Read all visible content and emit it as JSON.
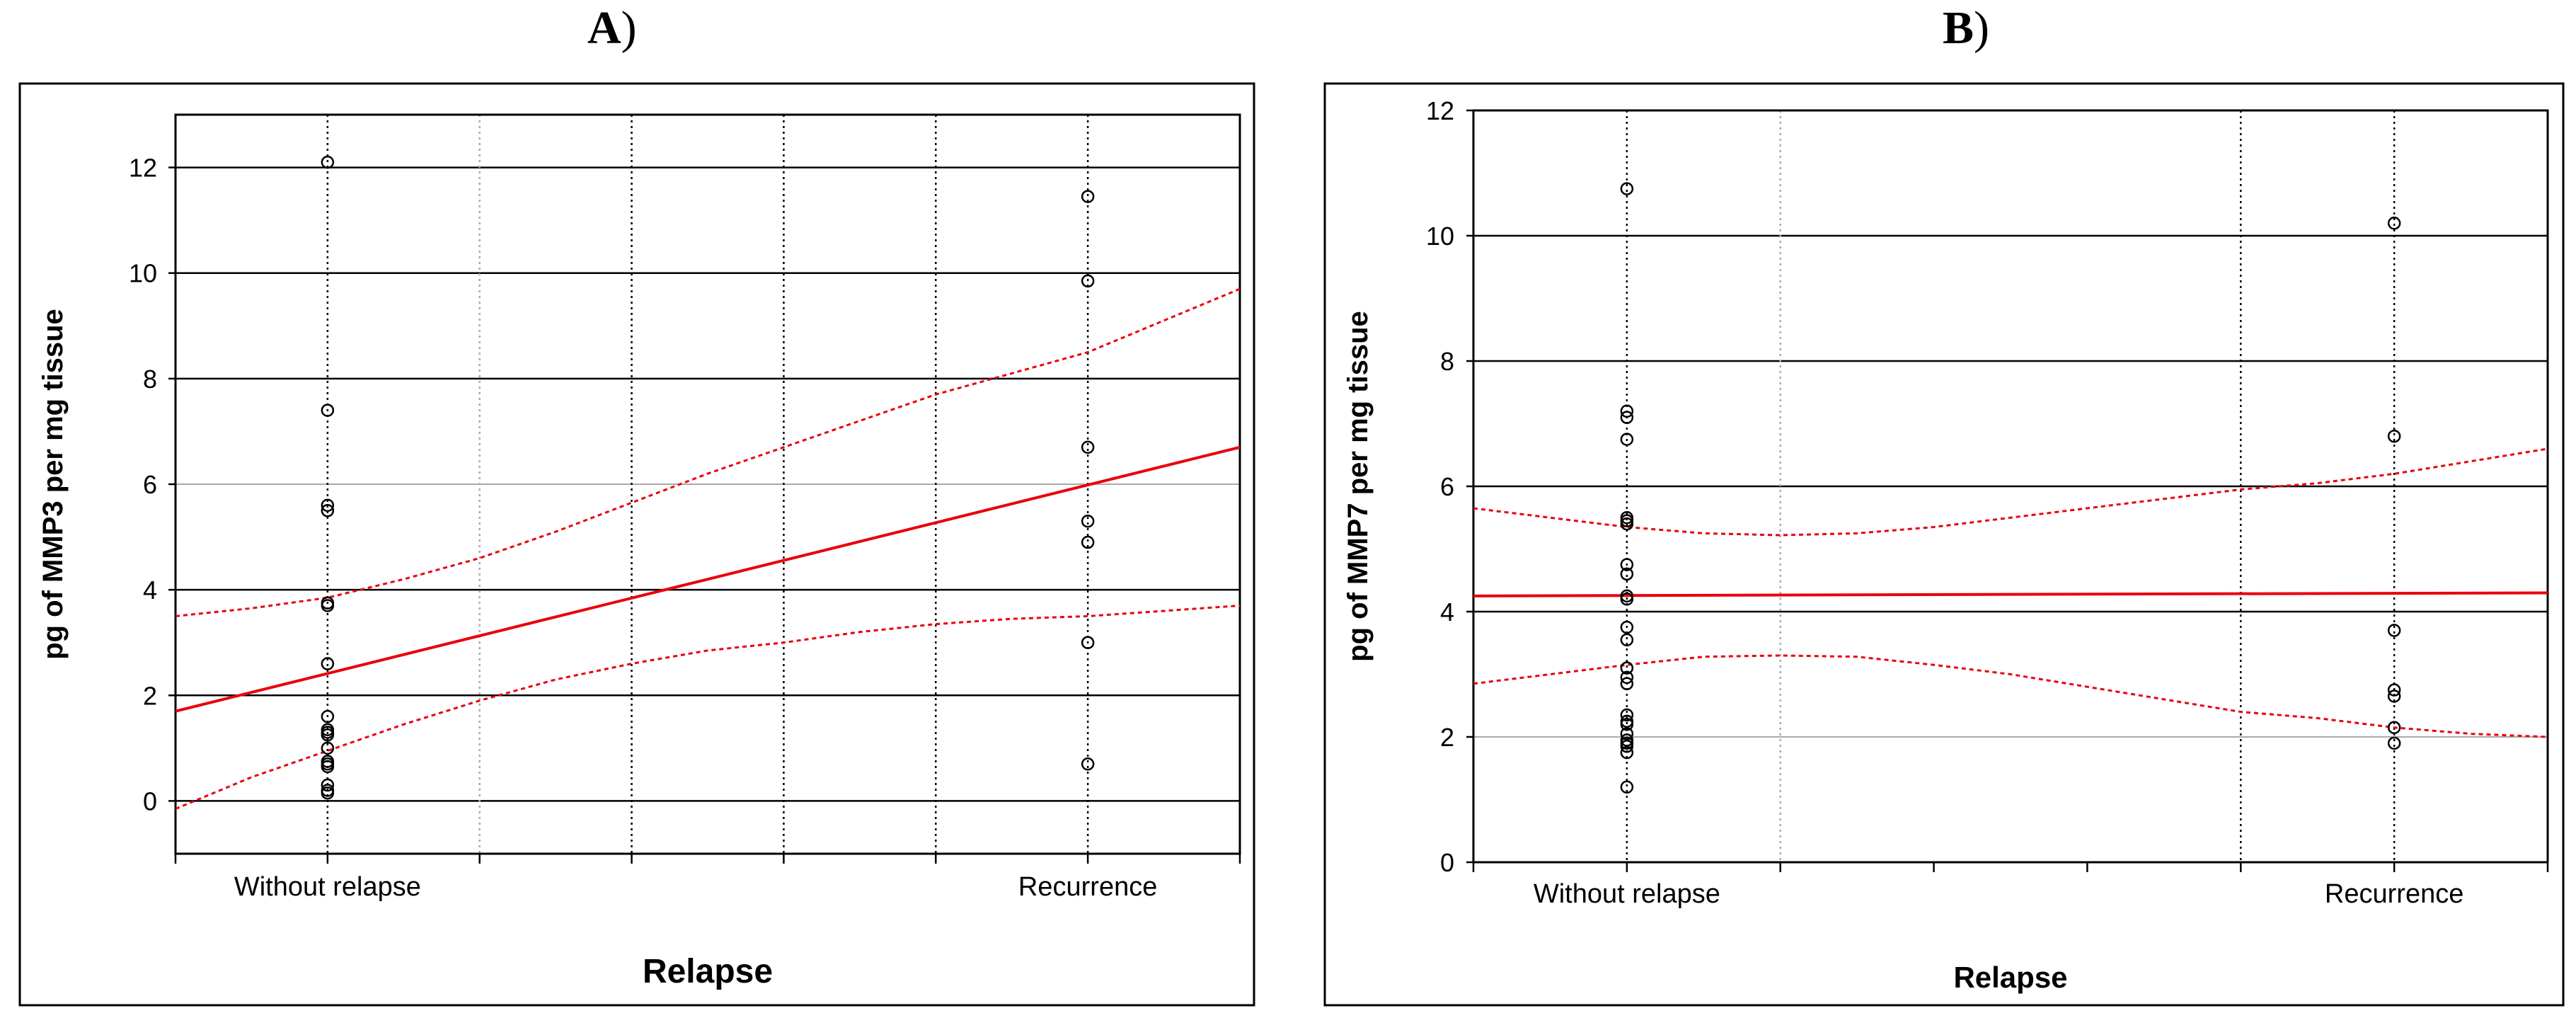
{
  "panels": [
    {
      "letter": "A",
      "paren": ")"
    },
    {
      "letter": "B",
      "paren": ")"
    }
  ],
  "colors": {
    "points": "#000000",
    "fit_line": "#e8000b",
    "confidence_band": "#e8000b",
    "frame": "#000000",
    "grid_major": "#000000",
    "grid_minor": "#aaaaaa"
  },
  "chart_data": [
    {
      "type": "scatter",
      "title": "",
      "xlabel": "Relapse",
      "ylabel": "pg of MMP3 per mg tissue",
      "categories": [
        "Without relapse",
        "Recurrence"
      ],
      "category_x": [
        0,
        1
      ],
      "xlim": [
        -0.2,
        1.2
      ],
      "ylim": [
        -1,
        13
      ],
      "yticks": [
        0,
        2,
        4,
        6,
        8,
        10,
        12
      ],
      "grid": true,
      "series": [
        {
          "group": "Without relapse",
          "x": [
            0,
            0,
            0,
            0,
            0,
            0,
            0,
            0,
            0,
            0,
            0,
            0,
            0,
            0,
            0,
            0,
            0,
            0
          ],
          "y": [
            12.1,
            7.4,
            5.6,
            5.5,
            3.75,
            3.7,
            2.6,
            1.6,
            1.35,
            1.3,
            1.25,
            1.0,
            0.75,
            0.7,
            0.65,
            0.3,
            0.2,
            0.15
          ]
        },
        {
          "group": "Recurrence",
          "x": [
            1,
            1,
            1,
            1,
            1,
            1,
            1
          ],
          "y": [
            11.45,
            9.85,
            6.7,
            5.3,
            4.9,
            3.0,
            0.7
          ]
        }
      ],
      "fit": {
        "x": [
          -0.2,
          1.2
        ],
        "y": [
          1.7,
          6.7
        ]
      },
      "confidence_upper": {
        "x": [
          -0.2,
          -0.1,
          0,
          0.1,
          0.2,
          0.3,
          0.4,
          0.5,
          0.6,
          0.7,
          0.8,
          0.9,
          1.0,
          1.1,
          1.2
        ],
        "y": [
          3.5,
          3.65,
          3.85,
          4.2,
          4.6,
          5.1,
          5.65,
          6.2,
          6.7,
          7.2,
          7.7,
          8.1,
          8.5,
          9.1,
          9.7
        ]
      },
      "confidence_lower": {
        "x": [
          -0.2,
          -0.1,
          0,
          0.1,
          0.2,
          0.3,
          0.4,
          0.5,
          0.6,
          0.7,
          0.8,
          0.9,
          1.0,
          1.1,
          1.2
        ],
        "y": [
          -0.15,
          0.45,
          0.95,
          1.45,
          1.9,
          2.3,
          2.6,
          2.85,
          3.0,
          3.2,
          3.35,
          3.45,
          3.5,
          3.6,
          3.7
        ]
      }
    },
    {
      "type": "scatter",
      "title": "",
      "xlabel": "Relapse",
      "ylabel": "pg of MMP7 per mg tissue",
      "categories": [
        "Without relapse",
        "Recurrence"
      ],
      "category_x": [
        0,
        1
      ],
      "xlim": [
        -0.2,
        1.2
      ],
      "ylim": [
        0,
        12
      ],
      "yticks": [
        0,
        2,
        4,
        6,
        8,
        10,
        12
      ],
      "grid": true,
      "series": [
        {
          "group": "Without relapse",
          "x": [
            0,
            0,
            0,
            0,
            0,
            0,
            0,
            0,
            0,
            0,
            0,
            0,
            0,
            0,
            0,
            0,
            0,
            0,
            0,
            0,
            0,
            0,
            0,
            0,
            0
          ],
          "y": [
            10.75,
            7.2,
            7.1,
            6.75,
            5.5,
            5.45,
            5.4,
            4.75,
            4.6,
            4.25,
            4.2,
            3.75,
            3.55,
            3.1,
            2.95,
            2.85,
            2.35,
            2.25,
            2.2,
            2.05,
            1.95,
            1.9,
            1.85,
            1.75,
            1.2
          ]
        },
        {
          "group": "Recurrence",
          "x": [
            1,
            1,
            1,
            1,
            1,
            1,
            1
          ],
          "y": [
            10.2,
            6.8,
            3.7,
            2.75,
            2.65,
            2.15,
            1.9
          ]
        }
      ],
      "fit": {
        "x": [
          -0.2,
          1.2
        ],
        "y": [
          4.25,
          4.3
        ]
      },
      "confidence_upper": {
        "x": [
          -0.2,
          -0.1,
          0,
          0.1,
          0.2,
          0.3,
          0.4,
          0.5,
          0.6,
          0.7,
          0.8,
          0.9,
          1.0,
          1.1,
          1.2
        ],
        "y": [
          5.65,
          5.5,
          5.35,
          5.25,
          5.22,
          5.25,
          5.35,
          5.5,
          5.65,
          5.8,
          5.95,
          6.05,
          6.2,
          6.4,
          6.6
        ]
      },
      "confidence_lower": {
        "x": [
          -0.2,
          -0.1,
          0,
          0.1,
          0.2,
          0.3,
          0.4,
          0.5,
          0.6,
          0.7,
          0.8,
          0.9,
          1.0,
          1.1,
          1.2
        ],
        "y": [
          2.85,
          3.0,
          3.15,
          3.28,
          3.3,
          3.28,
          3.15,
          3.0,
          2.8,
          2.6,
          2.4,
          2.3,
          2.15,
          2.05,
          2.0
        ]
      }
    }
  ]
}
